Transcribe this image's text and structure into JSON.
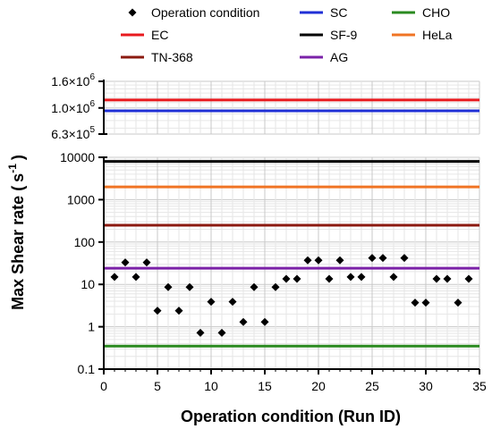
{
  "chart_data": {
    "type": "scatter",
    "xlabel": "Operation condition (Run ID)",
    "ylabel_main": "Max Shear rate (",
    "ylabel_unit": "s",
    "ylabel_exp": "-1",
    "ylabel_close": ")",
    "y_scale": "log",
    "broken_axis": true,
    "xlim": [
      0,
      35
    ],
    "x_ticks": [
      0,
      5,
      10,
      15,
      20,
      25,
      30,
      35
    ],
    "lower_ylim": [
      0.1,
      10000
    ],
    "lower_y_ticks": [
      {
        "value": 0.1,
        "label": "0.1"
      },
      {
        "value": 1,
        "label": "1"
      },
      {
        "value": 10,
        "label": "10"
      },
      {
        "value": 100,
        "label": "100"
      },
      {
        "value": 1000,
        "label": "1000"
      },
      {
        "value": 10000,
        "label": "10000"
      }
    ],
    "upper_ylim": [
      630000,
      1600000
    ],
    "upper_y_ticks": [
      {
        "value": 630000,
        "mant": "6.3",
        "exp": "5"
      },
      {
        "value": 1000000,
        "mant": "1.0",
        "exp": "6"
      },
      {
        "value": 1600000,
        "mant": "1.6",
        "exp": "6"
      }
    ],
    "grid": true,
    "legend_position": "top",
    "points": {
      "name": "Operation condition",
      "color": "#000000",
      "x": [
        1,
        2,
        3,
        4,
        5,
        6,
        7,
        8,
        9,
        10,
        11,
        12,
        13,
        14,
        15,
        16,
        17,
        18,
        19,
        20,
        21,
        22,
        23,
        24,
        25,
        26,
        27,
        28,
        29,
        30,
        31,
        32,
        33,
        34
      ],
      "y": [
        15,
        33,
        15,
        33,
        2.4,
        8.6,
        2.4,
        8.6,
        0.72,
        3.9,
        0.72,
        3.9,
        1.3,
        8.6,
        1.3,
        8.6,
        13.5,
        13.5,
        37,
        37,
        13.5,
        37,
        15,
        15,
        42,
        42,
        15,
        42,
        3.7,
        3.7,
        13.5,
        13.5,
        3.7,
        13.5
      ]
    },
    "lines": [
      {
        "name": "EC",
        "color": "#e8191e",
        "value": 1150000
      },
      {
        "name": "TN-368",
        "color": "#8b1a10",
        "value": 250
      },
      {
        "name": "SC",
        "color": "#1f2fd6",
        "value": 950000
      },
      {
        "name": "SF-9",
        "color": "#000000",
        "value": 8000
      },
      {
        "name": "AG",
        "color": "#7b22a8",
        "value": 24
      },
      {
        "name": "CHO",
        "color": "#2a8a1f",
        "value": 0.35
      },
      {
        "name": "HeLa",
        "color": "#f07424",
        "value": 2000
      }
    ]
  }
}
